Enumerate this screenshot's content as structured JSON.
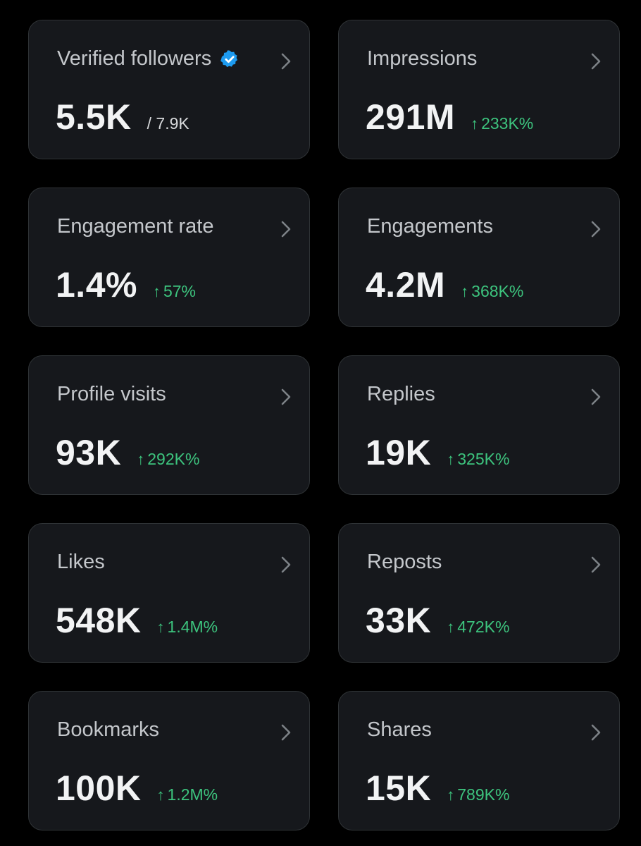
{
  "colors": {
    "background": "#000000",
    "card_background": "#16181c",
    "card_border": "#2f3336",
    "positive": "#3dc47e",
    "verified_blue": "#1d9bf0"
  },
  "cards": [
    {
      "title": "Verified followers",
      "value": "5.5K",
      "total": "/ 7.9K",
      "icon": "verified-badge-icon"
    },
    {
      "title": "Impressions",
      "value": "291M",
      "change_arrow": "↑",
      "change": "233K%"
    },
    {
      "title": "Engagement rate",
      "value": "1.4%",
      "change_arrow": "↑",
      "change": "57%"
    },
    {
      "title": "Engagements",
      "value": "4.2M",
      "change_arrow": "↑",
      "change": "368K%"
    },
    {
      "title": "Profile visits",
      "value": "93K",
      "change_arrow": "↑",
      "change": "292K%"
    },
    {
      "title": "Replies",
      "value": "19K",
      "change_arrow": "↑",
      "change": "325K%"
    },
    {
      "title": "Likes",
      "value": "548K",
      "change_arrow": "↑",
      "change": "1.4M%"
    },
    {
      "title": "Reposts",
      "value": "33K",
      "change_arrow": "↑",
      "change": "472K%"
    },
    {
      "title": "Bookmarks",
      "value": "100K",
      "change_arrow": "↑",
      "change": "1.2M%"
    },
    {
      "title": "Shares",
      "value": "15K",
      "change_arrow": "↑",
      "change": "789K%"
    }
  ]
}
